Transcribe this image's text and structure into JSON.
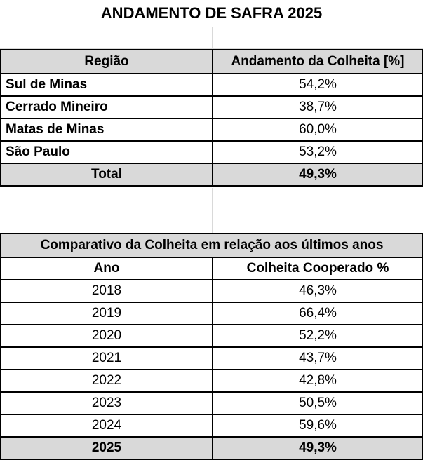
{
  "title": "ANDAMENTO DE SAFRA 2025",
  "table1": {
    "headers": [
      "Região",
      "Andamento da Colheita [%]"
    ],
    "rows": [
      {
        "region": "Sul de Minas",
        "value": "54,2%"
      },
      {
        "region": "Cerrado Mineiro",
        "value": "38,7%"
      },
      {
        "region": "Matas de Minas",
        "value": "60,0%"
      },
      {
        "region": "São Paulo",
        "value": "53,2%"
      }
    ],
    "total": {
      "label": "Total",
      "value": "49,3%"
    }
  },
  "table2": {
    "title": "Comparativo da Colheita em relação aos últimos anos",
    "headers": [
      "Ano",
      "Colheita Cooperado %"
    ],
    "rows": [
      {
        "year": "2018",
        "value": "46,3%"
      },
      {
        "year": "2019",
        "value": "66,4%"
      },
      {
        "year": "2020",
        "value": "52,2%"
      },
      {
        "year": "2021",
        "value": "43,7%"
      },
      {
        "year": "2022",
        "value": "42,8%"
      },
      {
        "year": "2023",
        "value": "50,5%"
      },
      {
        "year": "2024",
        "value": "59,6%"
      }
    ],
    "total": {
      "year": "2025",
      "value": "49,3%"
    }
  }
}
